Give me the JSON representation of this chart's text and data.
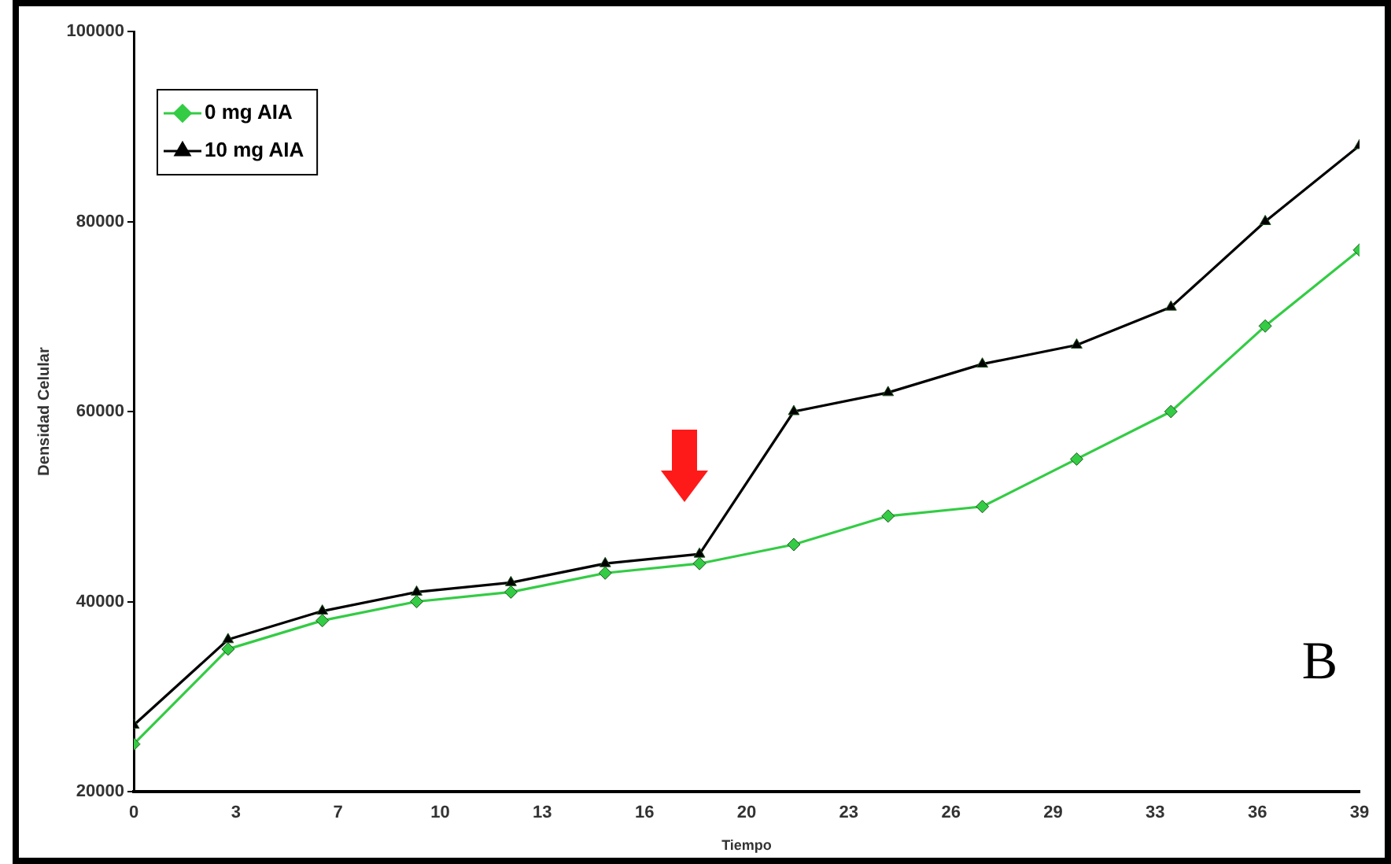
{
  "chart_data": {
    "type": "line",
    "xlabel": "Tiempo",
    "ylabel": "Densidad Celular",
    "x": [
      0,
      3,
      6,
      9,
      12,
      15,
      18,
      21,
      24,
      27,
      30,
      33,
      36,
      39
    ],
    "series": [
      {
        "name": "0 mg AIA",
        "color": "#33cc44",
        "marker": "diamond",
        "values": [
          25000,
          35000,
          38000,
          40000,
          41000,
          43000,
          44000,
          46000,
          49000,
          50000,
          55000,
          60000,
          69000,
          77000
        ]
      },
      {
        "name": "10 mg AIA",
        "color": "#000000",
        "marker": "triangle",
        "values": [
          27000,
          36000,
          39000,
          41000,
          42000,
          44000,
          45000,
          60000,
          62000,
          65000,
          67000,
          71000,
          80000,
          88000
        ]
      }
    ],
    "xlim": [
      0,
      39
    ],
    "xticks": [
      0,
      {
        "value": 3.25,
        "label": "3"
      },
      {
        "value": 6.5,
        "label": "7"
      },
      {
        "value": 9.75,
        "label": "10"
      },
      13,
      {
        "value": 16.25,
        "label": "16"
      },
      {
        "value": 19.5,
        "label": "20"
      },
      {
        "value": 22.75,
        "label": "23"
      },
      26,
      {
        "value": 29.25,
        "label": "29"
      },
      {
        "value": 32.5,
        "label": "33"
      },
      {
        "value": 35.75,
        "label": "36"
      },
      39
    ],
    "ylim": [
      20000,
      100000
    ],
    "yticks": [
      20000,
      40000,
      60000,
      80000,
      100000
    ],
    "grid": false,
    "legend": "top left",
    "line_style": "solid",
    "annotations": [
      "B"
    ]
  }
}
